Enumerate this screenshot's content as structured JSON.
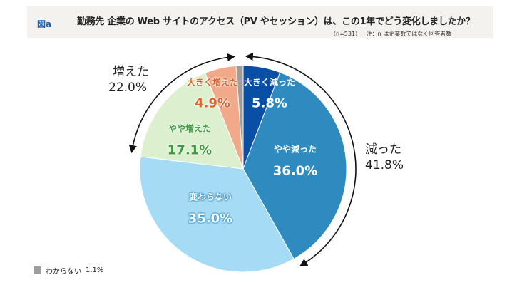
{
  "header": {
    "figure_label": "図a",
    "title": "勤務先 企業の Web サイトのアクセス（PV やセッション）は、この1年でどう変化しましたか？",
    "sample": "（n=531）",
    "note": "注：n は企業数ではなく回答者数"
  },
  "chart_data": {
    "type": "pie",
    "title": "勤務先 企業の Web サイトのアクセス（PV やセッション）は、この1年でどう変化しましたか？",
    "start": "top",
    "direction": "clockwise",
    "slices": [
      {
        "label": "大きく減った",
        "value": 5.8,
        "display": "5.8%",
        "color": "#0a4fa6"
      },
      {
        "label": "やや減った",
        "value": 36.0,
        "display": "36.0%",
        "color": "#2f8bbf"
      },
      {
        "label": "変わらない",
        "value": 35.0,
        "display": "35.0%",
        "color": "#a6dbf5"
      },
      {
        "label": "やや増えた",
        "value": 17.1,
        "display": "17.1%",
        "color": "#dcf0d0"
      },
      {
        "label": "大きく増えた",
        "value": 4.9,
        "display": "4.9%",
        "color": "#f1a98a"
      },
      {
        "label": "わからない",
        "value": 1.1,
        "display": "1.1%",
        "color": "#9d9d9d"
      }
    ],
    "groups": [
      {
        "label": "減った",
        "display": "41.8%"
      },
      {
        "label": "増えた",
        "display": "22.0%"
      }
    ],
    "legend": {
      "label": "わからない",
      "display": "1.1%",
      "placement": "bottom-left"
    }
  }
}
